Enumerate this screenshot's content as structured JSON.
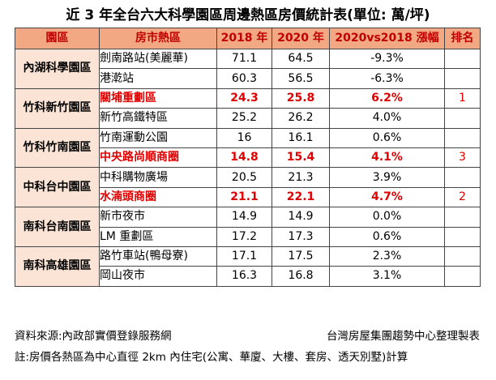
{
  "title": "近 3 年全台六大科學園區周邊熱區房價統計表(單位: 萬/坪)",
  "headers": {
    "park": "園區",
    "district": "房市熱區",
    "y2018": "2018 年",
    "y2020": "2020 年",
    "change": "2020vs2018 漲幅",
    "rank": "排名"
  },
  "rows": [
    {
      "park": "內湖科學園區",
      "district": "劍南路站(美麗華)",
      "y2018": "71.1",
      "y2020": "64.5",
      "change": "-9.3%",
      "rank": "",
      "highlight": false
    },
    {
      "park": "",
      "district": "港漧站",
      "y2018": "60.3",
      "y2020": "56.5",
      "change": "-6.3%",
      "rank": "",
      "highlight": false
    },
    {
      "park": "竹科新竹園區",
      "district": "關埔重劃區",
      "y2018": "24.3",
      "y2020": "25.8",
      "change": "6.2%",
      "rank": "1",
      "highlight": true
    },
    {
      "park": "",
      "district": "新竹高鐵特區",
      "y2018": "25.2",
      "y2020": "26.2",
      "change": "4.0%",
      "rank": "",
      "highlight": false
    },
    {
      "park": "竹科竹南園區",
      "district": "竹南運動公園",
      "y2018": "16",
      "y2020": "16.1",
      "change": "0.6%",
      "rank": "",
      "highlight": false
    },
    {
      "park": "",
      "district": "中央路尚順商圈",
      "y2018": "14.8",
      "y2020": "15.4",
      "change": "4.1%",
      "rank": "3",
      "highlight": true
    },
    {
      "park": "中科台中園區",
      "district": "中科購物廣場",
      "y2018": "20.5",
      "y2020": "21.3",
      "change": "3.9%",
      "rank": "",
      "highlight": false
    },
    {
      "park": "",
      "district": "水湳頭商圈",
      "y2018": "21.1",
      "y2020": "22.1",
      "change": "4.7%",
      "rank": "2",
      "highlight": true
    },
    {
      "park": "南科台南園區",
      "district": "新市夜市",
      "y2018": "14.9",
      "y2020": "14.9",
      "change": "0.0%",
      "rank": "",
      "highlight": false
    },
    {
      "park": "",
      "district": "LM 重劃區",
      "y2018": "17.2",
      "y2020": "17.3",
      "change": "0.6%",
      "rank": "",
      "highlight": false
    },
    {
      "park": "南科高雄園區",
      "district": "路竹車站(鴨母寮)",
      "y2018": "17.1",
      "y2020": "17.5",
      "change": "2.3%",
      "rank": "",
      "highlight": false
    },
    {
      "park": "",
      "district": "岡山夜市",
      "y2018": "16.3",
      "y2020": "16.8",
      "change": "3.1%",
      "rank": "",
      "highlight": false
    }
  ],
  "source_left": "資料來源:內政部實價登錄服務網",
  "source_right": "台灣房屋集團趨勢中心整理製表",
  "note": "註:房價各熱區為中心直徑 2km 內住宅(公寓、華廈、大樓、套房、透天別墅)計算",
  "colors": {
    "header_bg": "#f2a883",
    "header_text": "#c00000",
    "park_bg": "#fbe4d6",
    "highlight_text": "#e00000"
  }
}
